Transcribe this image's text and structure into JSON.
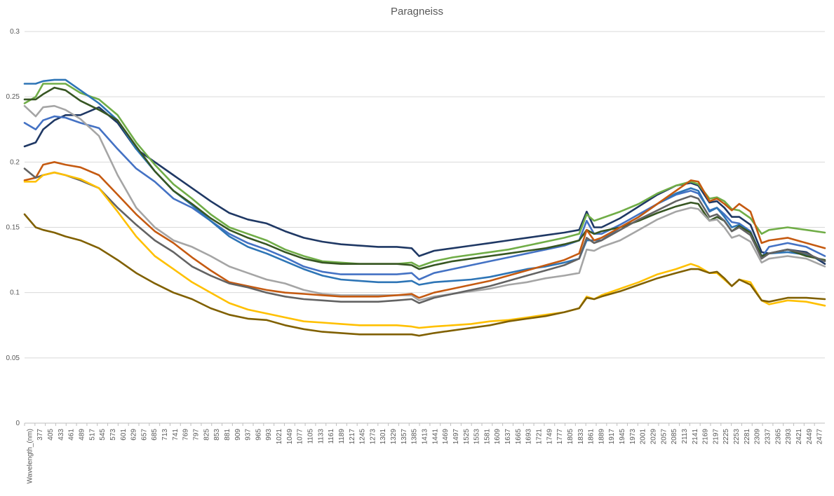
{
  "chart_data": {
    "type": "line",
    "title": "Paragneiss",
    "xlabel": "",
    "ylabel": "",
    "ylim": [
      0,
      0.3
    ],
    "yticks": [
      "0",
      "0.05",
      "0.1",
      "0.15",
      "0.2",
      "0.25",
      "0.3"
    ],
    "yticks_values": [
      0,
      0.05,
      0.1,
      0.15,
      0.2,
      0.25,
      0.3
    ],
    "grid": true,
    "legend": "none",
    "xtick_labels": [
      "Wavelength_(nm)",
      "377",
      "405",
      "433",
      "461",
      "489",
      "517",
      "545",
      "573",
      "601",
      "629",
      "657",
      "685",
      "713",
      "741",
      "769",
      "797",
      "825",
      "853",
      "881",
      "909",
      "937",
      "965",
      "993",
      "1021",
      "1049",
      "1077",
      "1105",
      "1133",
      "1161",
      "1189",
      "1217",
      "1245",
      "1273",
      "1301",
      "1329",
      "1357",
      "1385",
      "1413",
      "1441",
      "1469",
      "1497",
      "1525",
      "1553",
      "1581",
      "1609",
      "1637",
      "1665",
      "1693",
      "1721",
      "1749",
      "1777",
      "1805",
      "1833",
      "1861",
      "1889",
      "1917",
      "1945",
      "1973",
      "2001",
      "2029",
      "2057",
      "2085",
      "2113",
      "2141",
      "2169",
      "2197",
      "2225",
      "2253",
      "2281",
      "2309",
      "2337",
      "2365",
      "2393",
      "2421",
      "2449",
      "2477"
    ],
    "x": [
      350,
      380,
      400,
      430,
      460,
      500,
      550,
      600,
      650,
      700,
      750,
      800,
      850,
      900,
      950,
      1000,
      1050,
      1100,
      1150,
      1200,
      1250,
      1300,
      1350,
      1390,
      1410,
      1450,
      1500,
      1550,
      1600,
      1650,
      1700,
      1750,
      1800,
      1840,
      1860,
      1880,
      1900,
      1950,
      2000,
      2050,
      2100,
      2140,
      2160,
      2190,
      2210,
      2230,
      2250,
      2270,
      2300,
      2330,
      2350,
      2400,
      2450,
      2500
    ],
    "series": [
      {
        "color": "#1f3864",
        "values": [
          0.212,
          0.215,
          0.225,
          0.232,
          0.236,
          0.236,
          0.242,
          0.23,
          0.21,
          0.2,
          0.19,
          0.18,
          0.17,
          0.161,
          0.156,
          0.153,
          0.147,
          0.142,
          0.139,
          0.137,
          0.136,
          0.135,
          0.135,
          0.134,
          0.128,
          0.132,
          0.134,
          0.136,
          0.138,
          0.14,
          0.142,
          0.144,
          0.146,
          0.148,
          0.162,
          0.15,
          0.15,
          0.157,
          0.166,
          0.175,
          0.182,
          0.184,
          0.182,
          0.169,
          0.17,
          0.165,
          0.158,
          0.158,
          0.152,
          0.131,
          0.13,
          0.133,
          0.131,
          0.122
        ]
      },
      {
        "color": "#70ad47",
        "values": [
          0.245,
          0.25,
          0.26,
          0.26,
          0.26,
          0.253,
          0.248,
          0.236,
          0.215,
          0.198,
          0.183,
          0.172,
          0.16,
          0.15,
          0.145,
          0.14,
          0.133,
          0.128,
          0.124,
          0.123,
          0.122,
          0.122,
          0.122,
          0.123,
          0.12,
          0.124,
          0.127,
          0.129,
          0.131,
          0.133,
          0.136,
          0.139,
          0.142,
          0.145,
          0.16,
          0.155,
          0.157,
          0.162,
          0.168,
          0.176,
          0.182,
          0.185,
          0.183,
          0.172,
          0.173,
          0.17,
          0.164,
          0.163,
          0.157,
          0.145,
          0.148,
          0.15,
          0.148,
          0.146
        ]
      },
      {
        "color": "#4472c4",
        "values": [
          0.23,
          0.225,
          0.232,
          0.235,
          0.234,
          0.23,
          0.226,
          0.21,
          0.195,
          0.185,
          0.172,
          0.165,
          0.155,
          0.145,
          0.138,
          0.133,
          0.127,
          0.12,
          0.116,
          0.114,
          0.114,
          0.114,
          0.114,
          0.115,
          0.11,
          0.115,
          0.118,
          0.121,
          0.124,
          0.127,
          0.13,
          0.133,
          0.136,
          0.14,
          0.155,
          0.145,
          0.145,
          0.152,
          0.16,
          0.168,
          0.175,
          0.178,
          0.176,
          0.163,
          0.165,
          0.16,
          0.154,
          0.153,
          0.147,
          0.127,
          0.135,
          0.138,
          0.135,
          0.128
        ]
      },
      {
        "color": "#2e75b6",
        "values": [
          0.26,
          0.26,
          0.262,
          0.263,
          0.263,
          0.255,
          0.245,
          0.232,
          0.21,
          0.193,
          0.178,
          0.167,
          0.155,
          0.143,
          0.135,
          0.13,
          0.124,
          0.118,
          0.113,
          0.11,
          0.109,
          0.108,
          0.108,
          0.109,
          0.106,
          0.108,
          0.109,
          0.11,
          0.112,
          0.115,
          0.118,
          0.12,
          0.123,
          0.126,
          0.14,
          0.14,
          0.14,
          0.15,
          0.158,
          0.168,
          0.176,
          0.18,
          0.178,
          0.162,
          0.165,
          0.158,
          0.15,
          0.152,
          0.146,
          0.128,
          0.13,
          0.131,
          0.129,
          0.124
        ]
      },
      {
        "color": "#375623",
        "values": [
          0.248,
          0.248,
          0.252,
          0.257,
          0.255,
          0.247,
          0.24,
          0.232,
          0.212,
          0.193,
          0.178,
          0.168,
          0.157,
          0.148,
          0.142,
          0.137,
          0.131,
          0.126,
          0.123,
          0.122,
          0.122,
          0.122,
          0.122,
          0.121,
          0.118,
          0.121,
          0.124,
          0.126,
          0.128,
          0.13,
          0.132,
          0.134,
          0.137,
          0.14,
          0.148,
          0.145,
          0.147,
          0.15,
          0.155,
          0.161,
          0.166,
          0.169,
          0.168,
          0.155,
          0.158,
          0.155,
          0.147,
          0.151,
          0.146,
          0.128,
          0.13,
          0.133,
          0.128,
          0.125
        ]
      },
      {
        "color": "#a5a5a5",
        "values": [
          0.243,
          0.235,
          0.242,
          0.243,
          0.24,
          0.233,
          0.22,
          0.19,
          0.165,
          0.15,
          0.14,
          0.135,
          0.128,
          0.12,
          0.115,
          0.11,
          0.107,
          0.102,
          0.099,
          0.098,
          0.098,
          0.098,
          0.098,
          0.098,
          0.094,
          0.097,
          0.099,
          0.101,
          0.103,
          0.106,
          0.108,
          0.111,
          0.113,
          0.115,
          0.133,
          0.132,
          0.135,
          0.14,
          0.148,
          0.156,
          0.162,
          0.165,
          0.164,
          0.155,
          0.156,
          0.15,
          0.142,
          0.144,
          0.139,
          0.123,
          0.126,
          0.128,
          0.126,
          0.12
        ]
      },
      {
        "color": "#c55a11",
        "values": [
          0.186,
          0.188,
          0.198,
          0.2,
          0.198,
          0.196,
          0.19,
          0.175,
          0.16,
          0.147,
          0.138,
          0.127,
          0.117,
          0.108,
          0.105,
          0.102,
          0.1,
          0.099,
          0.098,
          0.097,
          0.097,
          0.097,
          0.098,
          0.099,
          0.096,
          0.1,
          0.103,
          0.106,
          0.109,
          0.113,
          0.117,
          0.121,
          0.125,
          0.13,
          0.148,
          0.14,
          0.142,
          0.15,
          0.158,
          0.168,
          0.178,
          0.186,
          0.185,
          0.17,
          0.172,
          0.168,
          0.163,
          0.168,
          0.162,
          0.138,
          0.14,
          0.142,
          0.138,
          0.134
        ]
      },
      {
        "color": "#636363",
        "values": [
          0.195,
          0.188,
          0.19,
          0.192,
          0.19,
          0.186,
          0.18,
          0.165,
          0.152,
          0.14,
          0.131,
          0.12,
          0.113,
          0.107,
          0.104,
          0.1,
          0.097,
          0.095,
          0.094,
          0.093,
          0.093,
          0.093,
          0.094,
          0.095,
          0.092,
          0.096,
          0.099,
          0.102,
          0.105,
          0.109,
          0.113,
          0.117,
          0.121,
          0.126,
          0.142,
          0.138,
          0.14,
          0.148,
          0.156,
          0.163,
          0.17,
          0.174,
          0.172,
          0.158,
          0.16,
          0.155,
          0.147,
          0.15,
          0.144,
          0.126,
          0.13,
          0.133,
          0.13,
          0.124
        ]
      },
      {
        "color": "#ffc000",
        "values": [
          0.185,
          0.185,
          0.19,
          0.192,
          0.19,
          0.187,
          0.18,
          0.162,
          0.143,
          0.128,
          0.118,
          0.108,
          0.1,
          0.092,
          0.087,
          0.084,
          0.081,
          0.078,
          0.077,
          0.076,
          0.075,
          0.075,
          0.075,
          0.074,
          0.073,
          0.074,
          0.075,
          0.076,
          0.078,
          0.079,
          0.081,
          0.083,
          0.085,
          0.088,
          0.097,
          0.095,
          0.098,
          0.103,
          0.108,
          0.114,
          0.118,
          0.122,
          0.12,
          0.115,
          0.115,
          0.11,
          0.105,
          0.11,
          0.108,
          0.094,
          0.091,
          0.094,
          0.093,
          0.09
        ]
      },
      {
        "color": "#806000",
        "values": [
          0.16,
          0.15,
          0.148,
          0.146,
          0.143,
          0.14,
          0.134,
          0.125,
          0.115,
          0.107,
          0.1,
          0.095,
          0.088,
          0.083,
          0.08,
          0.079,
          0.075,
          0.072,
          0.07,
          0.069,
          0.068,
          0.068,
          0.068,
          0.068,
          0.067,
          0.069,
          0.071,
          0.073,
          0.075,
          0.078,
          0.08,
          0.082,
          0.085,
          0.088,
          0.096,
          0.095,
          0.097,
          0.101,
          0.106,
          0.111,
          0.115,
          0.118,
          0.118,
          0.115,
          0.116,
          0.111,
          0.105,
          0.11,
          0.106,
          0.094,
          0.093,
          0.096,
          0.096,
          0.095
        ]
      }
    ]
  }
}
